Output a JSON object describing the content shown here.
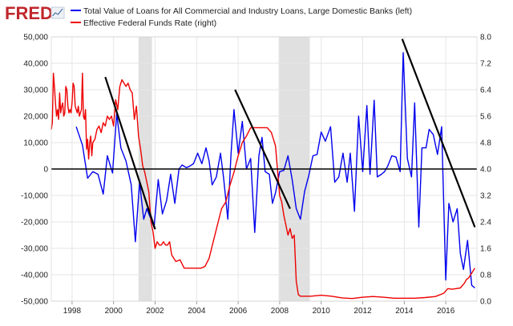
{
  "logo": {
    "text": "FRED",
    "color": "#c0272d"
  },
  "legend": [
    {
      "label": "Total Value of Loans for All Commercial and Industry Loans, Large Domestic Banks (left)",
      "color": "#0000ee"
    },
    {
      "label": "Effective Federal Funds Rate (right)",
      "color": "#ee0000"
    }
  ],
  "colors": {
    "plot_bg": "#ffffff",
    "grid": "#e6e6e6",
    "recession": "#e0e0e0",
    "zero_line": "#000000",
    "trend": "#000000"
  },
  "chart_data": {
    "type": "line",
    "x_axis": {
      "ticks": [
        "1998",
        "2000",
        "2002",
        "2004",
        "2006",
        "2008",
        "2010",
        "2012",
        "2014",
        "2016"
      ],
      "range": [
        1997.0,
        2017.5
      ]
    },
    "y_left": {
      "range": [
        -50000,
        50000
      ],
      "ticks": [
        "50,000",
        "40,000",
        "30,000",
        "20,000",
        "10,000",
        "0",
        "-10,000",
        "-20,000",
        "-30,000",
        "-40,000",
        "-50,000"
      ]
    },
    "y_right": {
      "range": [
        0.0,
        8.0
      ],
      "ticks": [
        "8.0",
        "7.2",
        "6.4",
        "5.6",
        "4.8",
        "4.0",
        "3.2",
        "2.4",
        "1.6",
        "0.8",
        "0.0"
      ]
    },
    "recessions": [
      [
        2001.2,
        2001.85
      ],
      [
        2007.95,
        2009.45
      ]
    ],
    "reference_line": {
      "axis": "left",
      "value": 0
    },
    "trend_lines": [
      {
        "from": [
          1999.6,
          34800
        ],
        "to": [
          2002.0,
          -22800
        ]
      },
      {
        "from": [
          2005.85,
          30000
        ],
        "to": [
          2008.5,
          -15000
        ]
      },
      {
        "from": [
          2013.9,
          49200
        ],
        "to": [
          2017.4,
          -22000
        ]
      }
    ],
    "series": [
      {
        "name": "Total Value of Loans for All Commercial and Industry Loans, Large Domestic Banks (left)",
        "axis": "left",
        "x": [
          1998.2,
          1998.5,
          1998.75,
          1999.0,
          1999.25,
          1999.5,
          1999.7,
          1999.95,
          2000.15,
          2000.35,
          2000.6,
          2000.85,
          2001.05,
          2001.25,
          2001.45,
          2001.6,
          2001.75,
          2001.95,
          2002.15,
          2002.35,
          2002.55,
          2002.75,
          2002.95,
          2003.15,
          2003.3,
          2003.5,
          2003.65,
          2003.85,
          2004.05,
          2004.25,
          2004.45,
          2004.6,
          2004.75,
          2004.95,
          2005.15,
          2005.3,
          2005.5,
          2005.65,
          2005.8,
          2006.0,
          2006.2,
          2006.4,
          2006.6,
          2006.8,
          2007.0,
          2007.15,
          2007.3,
          2007.5,
          2007.65,
          2007.8,
          2008.0,
          2008.2,
          2008.4,
          2008.6,
          2008.8,
          2009.0,
          2009.2,
          2009.4,
          2009.6,
          2009.8,
          2010.0,
          2010.2,
          2010.45,
          2010.65,
          2010.85,
          2011.05,
          2011.25,
          2011.4,
          2011.6,
          2011.8,
          2012.0,
          2012.2,
          2012.35,
          2012.55,
          2012.7,
          2012.9,
          2013.05,
          2013.2,
          2013.4,
          2013.6,
          2013.8,
          2013.95,
          2014.15,
          2014.35,
          2014.5,
          2014.7,
          2014.85,
          2015.05,
          2015.2,
          2015.4,
          2015.6,
          2015.8,
          2016.0,
          2016.15,
          2016.35,
          2016.55,
          2016.7,
          2016.85,
          2017.05,
          2017.25,
          2017.4
        ],
        "values": [
          16000,
          9000,
          -3500,
          -1000,
          -2000,
          -9500,
          5000,
          -1500,
          21000,
          8000,
          3000,
          -6000,
          -27500,
          -5000,
          -19000,
          -15000,
          -18000,
          -22000,
          -4000,
          -17000,
          -12000,
          -2000,
          -13000,
          0,
          1500,
          500,
          1000,
          2000,
          6000,
          2000,
          8000,
          3000,
          -6000,
          -3000,
          6000,
          -3500,
          -19000,
          5000,
          22500,
          6000,
          18000,
          0,
          4000,
          -24000,
          5000,
          12000,
          -1000,
          -2000,
          -13000,
          -9000,
          -1000,
          -500,
          5000,
          -4000,
          -15000,
          -19000,
          -8500,
          -2500,
          5000,
          5500,
          14000,
          10500,
          16000,
          -5000,
          -3000,
          6000,
          -5000,
          6000,
          -16000,
          20000,
          -1000,
          24000,
          -2000,
          26000,
          -3000,
          -2000,
          -1000,
          1000,
          5000,
          4500,
          -1000,
          44000,
          4000,
          -3000,
          25000,
          -22000,
          8000,
          8000,
          15000,
          13000,
          5500,
          16000,
          -42000,
          -13000,
          -20000,
          -15000,
          -32000,
          -38000,
          -27000,
          -44000,
          -45000
        ]
      },
      {
        "name": "Effective Federal Funds Rate (right)",
        "axis": "right",
        "x": [
          1997.0,
          1997.05,
          1997.1,
          1997.15,
          1997.2,
          1997.25,
          1997.3,
          1997.35,
          1997.4,
          1997.45,
          1997.5,
          1997.55,
          1997.6,
          1997.65,
          1997.7,
          1997.75,
          1997.8,
          1997.85,
          1997.9,
          1997.95,
          1998.0,
          1998.05,
          1998.1,
          1998.15,
          1998.2,
          1998.25,
          1998.3,
          1998.35,
          1998.4,
          1998.45,
          1998.5,
          1998.55,
          1998.6,
          1998.65,
          1998.7,
          1998.75,
          1998.8,
          1998.85,
          1998.9,
          1998.95,
          1999.0,
          1999.1,
          1999.2,
          1999.3,
          1999.4,
          1999.5,
          1999.6,
          1999.7,
          1999.8,
          1999.9,
          2000.0,
          2000.1,
          2000.2,
          2000.3,
          2000.4,
          2000.5,
          2000.6,
          2000.7,
          2000.8,
          2000.9,
          2001.0,
          2001.1,
          2001.2,
          2001.3,
          2001.4,
          2001.5,
          2001.6,
          2001.7,
          2001.8,
          2001.9,
          2002.0,
          2002.1,
          2002.2,
          2002.3,
          2002.4,
          2002.5,
          2002.6,
          2002.7,
          2002.8,
          2002.9,
          2003.0,
          2003.2,
          2003.4,
          2003.6,
          2003.8,
          2004.0,
          2004.2,
          2004.4,
          2004.6,
          2004.8,
          2005.0,
          2005.2,
          2005.4,
          2005.6,
          2005.8,
          2006.0,
          2006.2,
          2006.4,
          2006.6,
          2006.8,
          2007.0,
          2007.2,
          2007.4,
          2007.6,
          2007.8,
          2008.0,
          2008.1,
          2008.2,
          2008.3,
          2008.4,
          2008.5,
          2008.6,
          2008.7,
          2008.8,
          2008.9,
          2009.0,
          2009.5,
          2010.0,
          2010.5,
          2011.0,
          2011.5,
          2012.0,
          2012.5,
          2013.0,
          2013.5,
          2014.0,
          2014.5,
          2015.0,
          2015.5,
          2015.9,
          2016.1,
          2016.3,
          2016.5,
          2016.7,
          2016.9,
          2017.0,
          2017.1,
          2017.2,
          2017.3,
          2017.4
        ],
        "values": [
          5.2,
          5.4,
          6.9,
          6.5,
          6.0,
          5.6,
          5.8,
          5.5,
          6.3,
          5.7,
          5.9,
          6.0,
          5.6,
          5.7,
          6.5,
          6.4,
          5.9,
          5.7,
          5.8,
          5.7,
          6.0,
          6.6,
          6.5,
          5.9,
          5.8,
          5.7,
          5.9,
          5.6,
          5.7,
          5.8,
          6.9,
          5.6,
          5.5,
          5.8,
          4.6,
          4.9,
          4.3,
          4.8,
          5.0,
          4.4,
          4.8,
          4.9,
          5.2,
          5.3,
          5.1,
          5.4,
          5.3,
          5.6,
          5.5,
          5.6,
          5.3,
          6.1,
          5.8,
          6.5,
          6.7,
          6.6,
          6.5,
          6.6,
          6.4,
          6.3,
          5.5,
          5.9,
          5.0,
          4.6,
          4.1,
          3.9,
          3.6,
          3.3,
          2.4,
          2.1,
          1.6,
          1.8,
          1.7,
          1.7,
          1.8,
          1.7,
          1.7,
          1.8,
          1.4,
          1.3,
          1.2,
          1.25,
          1.0,
          1.0,
          1.0,
          1.0,
          1.0,
          1.05,
          1.3,
          1.8,
          2.3,
          2.8,
          3.0,
          3.5,
          3.9,
          4.4,
          4.8,
          5.0,
          5.25,
          5.25,
          5.25,
          5.25,
          5.25,
          5.1,
          4.7,
          3.2,
          3.0,
          2.6,
          2.3,
          2.0,
          2.2,
          1.9,
          2.0,
          0.6,
          0.2,
          0.15,
          0.15,
          0.18,
          0.15,
          0.1,
          0.08,
          0.12,
          0.14,
          0.12,
          0.09,
          0.09,
          0.09,
          0.11,
          0.14,
          0.24,
          0.38,
          0.36,
          0.38,
          0.4,
          0.55,
          0.66,
          0.7,
          0.8,
          0.9,
          1.0
        ]
      }
    ]
  }
}
